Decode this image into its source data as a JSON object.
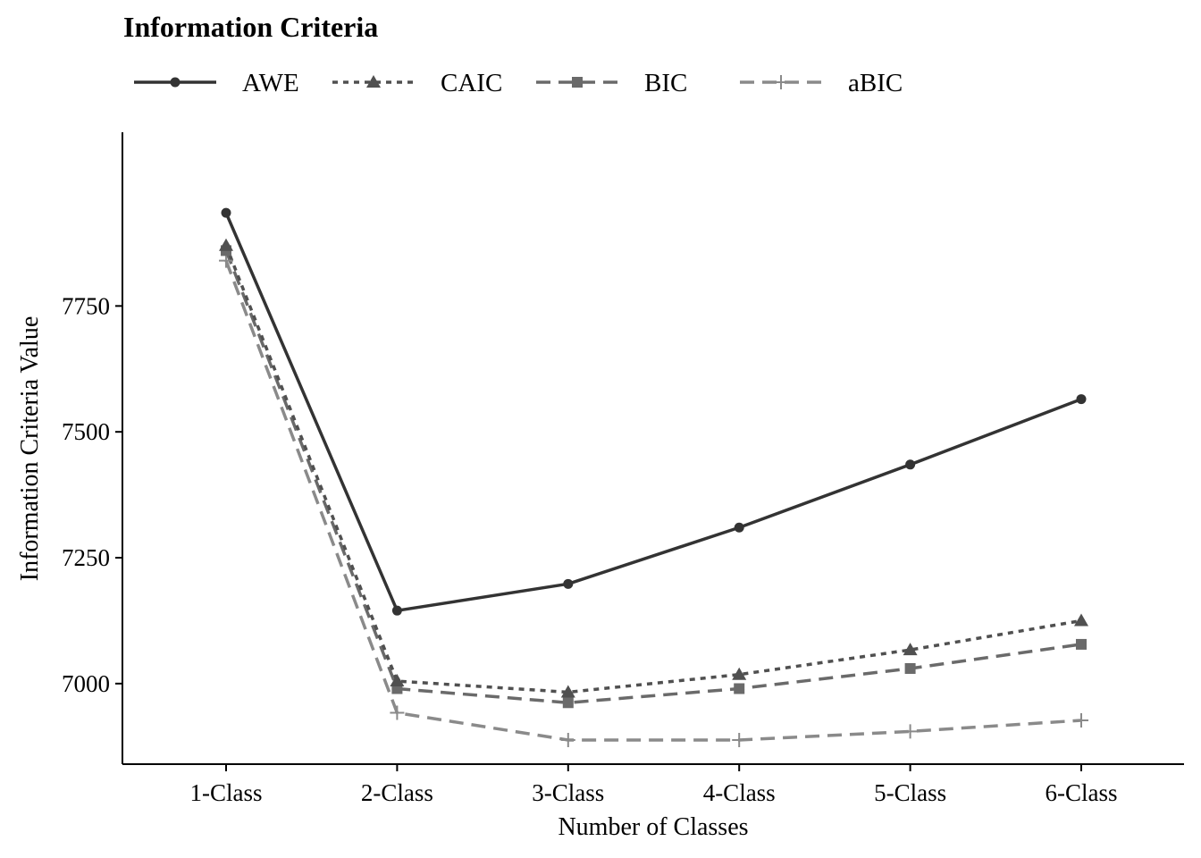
{
  "chart_data": {
    "type": "line",
    "title": "Information Criteria",
    "xlabel": "Number of Classes",
    "ylabel": "Information Criteria Value",
    "categories": [
      "1-Class",
      "2-Class",
      "3-Class",
      "4-Class",
      "5-Class",
      "6-Class"
    ],
    "yticks": [
      7000,
      7250,
      7500,
      7750
    ],
    "ylim": [
      6840,
      8095
    ],
    "grid": false,
    "legend_position": "top-left",
    "series": [
      {
        "name": "AWE",
        "values": [
          7935,
          7145,
          7198,
          7310,
          7435,
          7565
        ],
        "color": "#333333",
        "dash": "solid",
        "marker": "circle"
      },
      {
        "name": "CAIC",
        "values": [
          7870,
          7005,
          6983,
          7018,
          7067,
          7125
        ],
        "color": "#505050",
        "dash": "dotted",
        "marker": "triangle"
      },
      {
        "name": "BIC",
        "values": [
          7860,
          6990,
          6962,
          6990,
          7030,
          7078
        ],
        "color": "#6a6a6a",
        "dash": "dashed",
        "marker": "square"
      },
      {
        "name": "aBIC",
        "values": [
          7840,
          6942,
          6888,
          6888,
          6905,
          6927
        ],
        "color": "#8a8a8a",
        "dash": "dashed",
        "marker": "plus"
      }
    ]
  }
}
